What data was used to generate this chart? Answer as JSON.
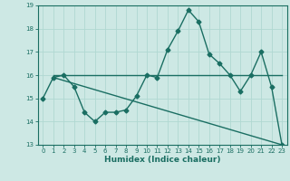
{
  "xlabel": "Humidex (Indice chaleur)",
  "ylabel": "",
  "background_color": "#cde8e4",
  "grid_color": "#b0d8d2",
  "line_color": "#1a6e62",
  "xlim": [
    -0.5,
    23.5
  ],
  "ylim": [
    13,
    19
  ],
  "yticks": [
    13,
    14,
    15,
    16,
    17,
    18,
    19
  ],
  "xticks": [
    0,
    1,
    2,
    3,
    4,
    5,
    6,
    7,
    8,
    9,
    10,
    11,
    12,
    13,
    14,
    15,
    16,
    17,
    18,
    19,
    20,
    21,
    22,
    23
  ],
  "line1_x": [
    0,
    1,
    2,
    3,
    4,
    5,
    6,
    7,
    8,
    9,
    10,
    11,
    12,
    13,
    14,
    15,
    16,
    17,
    18,
    19,
    20,
    21,
    22,
    23
  ],
  "line1_y": [
    15.0,
    15.9,
    16.0,
    15.5,
    14.4,
    14.0,
    14.4,
    14.4,
    14.5,
    15.1,
    16.0,
    15.9,
    17.1,
    17.9,
    18.8,
    18.3,
    16.9,
    16.5,
    16.0,
    15.3,
    16.0,
    17.0,
    15.5,
    13.0
  ],
  "line2_x": [
    1,
    23
  ],
  "line2_y": [
    16.0,
    16.0
  ],
  "line3_x": [
    1,
    23
  ],
  "line3_y": [
    15.9,
    13.0
  ],
  "marker": "D",
  "markersize": 2.5,
  "linewidth": 1.0,
  "font_size_ticks": 5,
  "font_size_xlabel": 6.5
}
